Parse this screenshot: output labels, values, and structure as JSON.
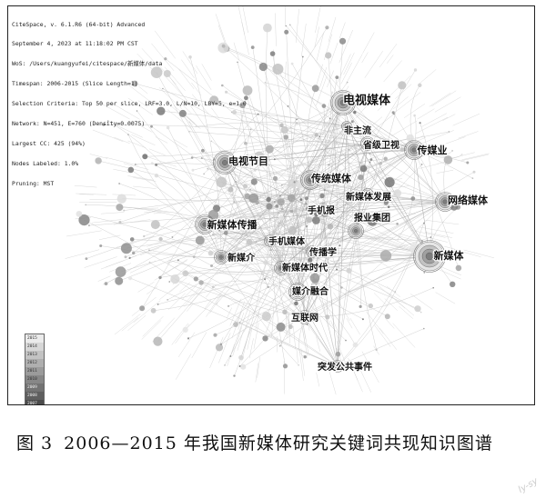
{
  "header_lines": [
    "CiteSpace, v. 6.1.R6 (64-bit) Advanced",
    "September 4, 2023 at 11:18:02 PM CST",
    "WoS: /Users/kuangyufei/citespace/新媒体/data",
    "Timespan: 2006-2015 (Slice Length=1)",
    "Selection Criteria: Top 50 per slice, LRF=3.0, L/N=10, LBY=5, e=1.0",
    "Network: N=451, E=760 (Density=0.0075)",
    "Largest CC: 425 (94%)",
    "Nodes Labeled: 1.0%",
    "Pruning: MST"
  ],
  "legend_years": [
    "2015",
    "2014",
    "2013",
    "2012",
    "2011",
    "2010",
    "2009",
    "2008",
    "2007",
    "2006"
  ],
  "keywords": [
    "电视媒体",
    "非主流",
    "省级卫视",
    "传媒业",
    "电视节目",
    "传统媒体",
    "新媒体发展",
    "网络媒体",
    "手机报",
    "报业集团",
    "新媒体传播",
    "手机媒体",
    "新媒体",
    "新媒介",
    "传播学",
    "新媒体时代",
    "媒介融合",
    "互联网",
    "突发公共事件"
  ],
  "caption": {
    "number": "图 3",
    "text": "2006—2015 年我国新媒体研究关键词共现知识图谱"
  },
  "watermark": "ly-sy"
}
